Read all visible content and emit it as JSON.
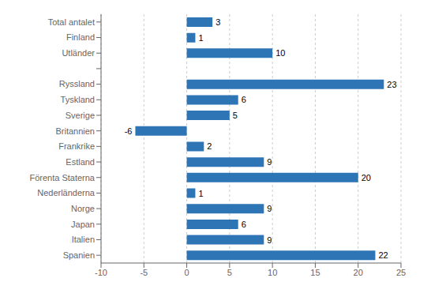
{
  "chart_data": {
    "type": "bar",
    "orientation": "horizontal",
    "categories": [
      "Spanien",
      "Italien",
      "Japan",
      "Norge",
      "Nederländerna",
      "Förenta Staterna",
      "Estland",
      "Frankrike",
      "Britannien",
      "Sverige",
      "Tyskland",
      "Ryssland",
      null,
      "Utländer",
      "Finland",
      "Total antalet"
    ],
    "values": [
      22,
      9,
      6,
      9,
      1,
      20,
      9,
      2,
      -6,
      5,
      6,
      23,
      null,
      10,
      1,
      3
    ],
    "color": "#2E75B6",
    "xlim": [
      -10,
      25
    ],
    "xticks": [
      -10,
      -5,
      0,
      5,
      10,
      15,
      20,
      25
    ],
    "grid": true,
    "data_labels": true
  }
}
